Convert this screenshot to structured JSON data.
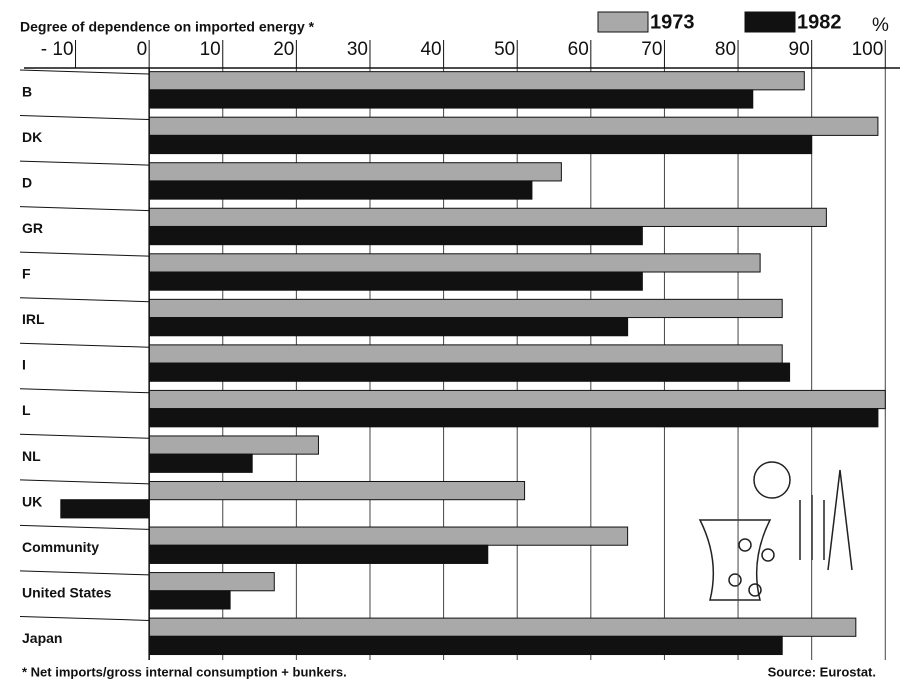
{
  "chart_data": {
    "type": "bar",
    "orientation": "horizontal",
    "title": "Degree of dependence on imported energy *",
    "unit_label": "%",
    "footnote": "* Net imports/gross internal consumption + bunkers.",
    "source": "Source: Eurostat.",
    "categories": [
      "B",
      "DK",
      "D",
      "GR",
      "F",
      "IRL",
      "I",
      "L",
      "NL",
      "UK",
      "Community",
      "United States",
      "Japan"
    ],
    "series": [
      {
        "name": "1973",
        "color": "#a9a9a9",
        "values": [
          89,
          99,
          56,
          92,
          83,
          86,
          86,
          100,
          23,
          51,
          65,
          17,
          96
        ]
      },
      {
        "name": "1982",
        "color": "#111111",
        "values": [
          82,
          90,
          52,
          67,
          67,
          65,
          87,
          99,
          14,
          -12,
          46,
          11,
          86
        ]
      }
    ],
    "xlim": [
      -17,
      102
    ],
    "xticks": [
      {
        "value": -10,
        "label": "- 10"
      },
      0,
      10,
      20,
      30,
      40,
      50,
      60,
      70,
      80,
      90,
      100
    ],
    "grid": true,
    "legend": "top-right"
  }
}
